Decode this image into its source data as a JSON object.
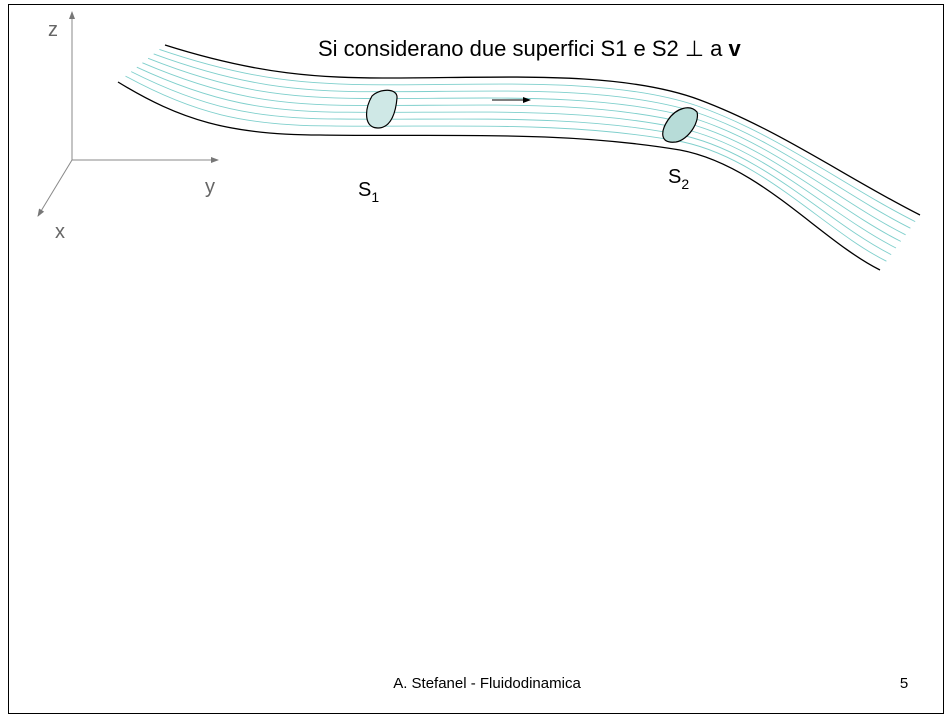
{
  "title": {
    "text": "Si considerano due superfici S1 e S2 ⊥ a",
    "bold": "v"
  },
  "axes": {
    "z": "z",
    "y": "y",
    "x": "x"
  },
  "surfaces": [
    {
      "letter": "S",
      "sub": "1"
    },
    {
      "letter": "S",
      "sub": "2"
    }
  ],
  "footer": {
    "text": "A. Stefanel - Fluidodinamica",
    "page": "5"
  }
}
